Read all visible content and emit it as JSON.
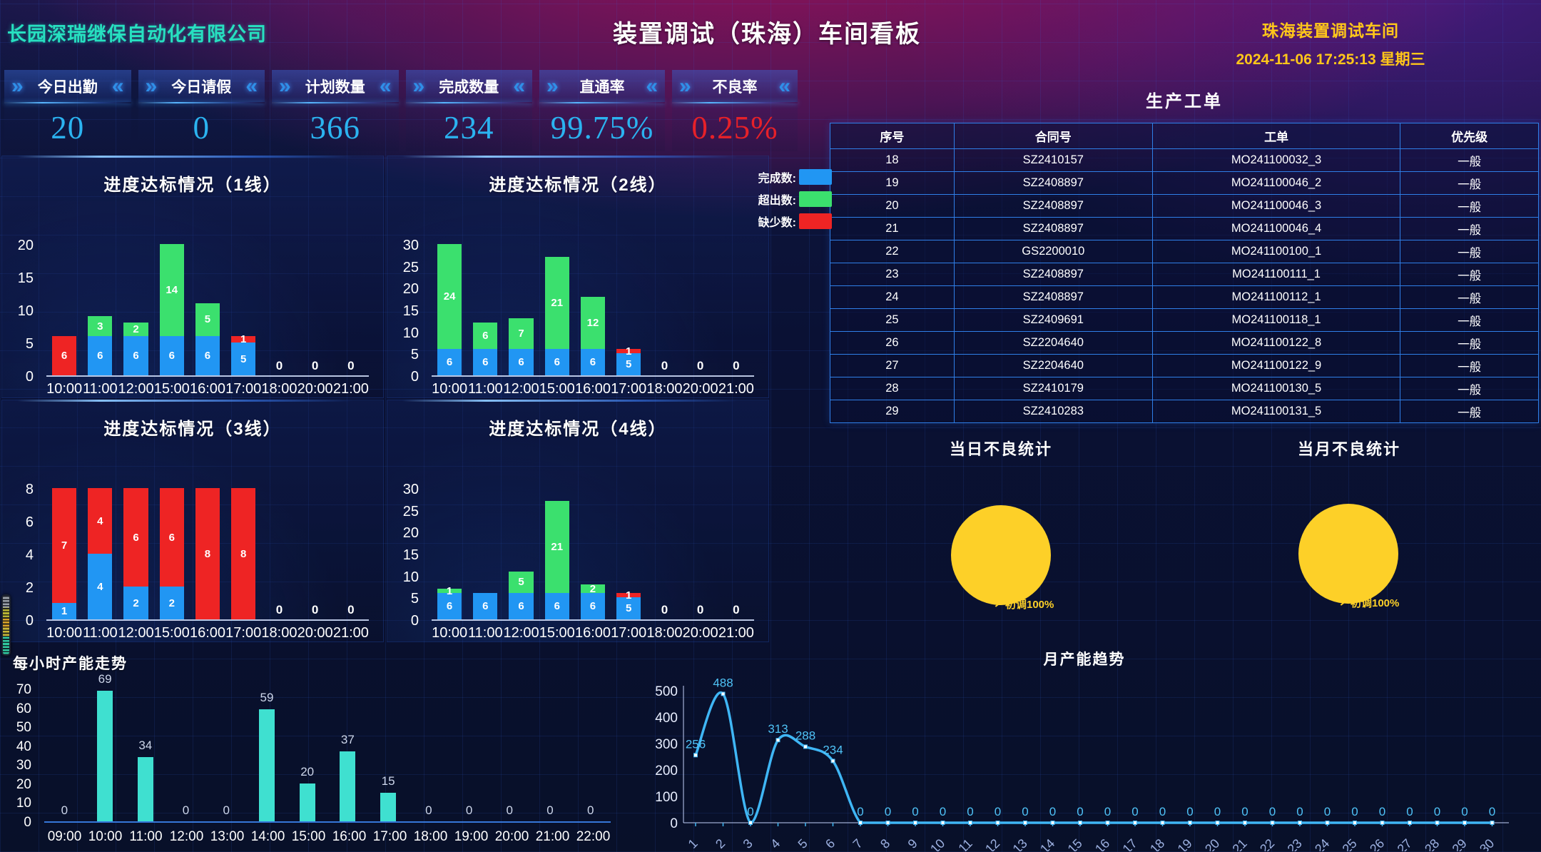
{
  "header": {
    "company": "长园深瑞继保自动化有限公司",
    "title": "装置调试（珠海）车间看板",
    "workshop": "珠海装置调试车间",
    "datetime": "2024-11-06 17:25:13 星期三"
  },
  "kpis": [
    {
      "label": "今日出勤",
      "value": "20",
      "color": "#2bb3f0"
    },
    {
      "label": "今日请假",
      "value": "0",
      "color": "#2bb3f0"
    },
    {
      "label": "计划数量",
      "value": "366",
      "color": "#2bb3f0"
    },
    {
      "label": "完成数量",
      "value": "234",
      "color": "#2bb3f0"
    },
    {
      "label": "直通率",
      "value": "99.75%",
      "color": "#2bb3f0"
    },
    {
      "label": "不良率",
      "value": "0.25%",
      "color": "#e62129"
    }
  ],
  "legend": {
    "items": [
      {
        "label": "完成数:",
        "color": "#2196f3"
      },
      {
        "label": "超出数:",
        "color": "#3be06e"
      },
      {
        "label": "缺少数:",
        "color": "#ee2424"
      }
    ]
  },
  "production_table": {
    "title": "生产工单",
    "columns": [
      "序号",
      "合同号",
      "工单",
      "优先级"
    ],
    "col_widths": [
      "17.5%",
      "28%",
      "35%",
      "19.5%"
    ],
    "rows": [
      [
        "18",
        "SZ2410157",
        "MO241100032_3",
        "一般"
      ],
      [
        "19",
        "SZ2408897",
        "MO241100046_2",
        "一般"
      ],
      [
        "20",
        "SZ2408897",
        "MO241100046_3",
        "一般"
      ],
      [
        "21",
        "SZ2408897",
        "MO241100046_4",
        "一般"
      ],
      [
        "22",
        "GS2200010",
        "MO241100100_1",
        "一般"
      ],
      [
        "23",
        "SZ2408897",
        "MO241100111_1",
        "一般"
      ],
      [
        "24",
        "SZ2408897",
        "MO241100112_1",
        "一般"
      ],
      [
        "25",
        "SZ2409691",
        "MO241100118_1",
        "一般"
      ],
      [
        "26",
        "SZ2204640",
        "MO241100122_8",
        "一般"
      ],
      [
        "27",
        "SZ2204640",
        "MO241100122_9",
        "一般"
      ],
      [
        "28",
        "SZ2410179",
        "MO241100130_5",
        "一般"
      ],
      [
        "29",
        "SZ2410283",
        "MO241100131_5",
        "一般"
      ]
    ]
  },
  "pies": [
    {
      "title": "当日不良统计",
      "label": "初调100%",
      "slices": [
        {
          "name": "初调",
          "percent": 100,
          "color": "#fdd028"
        }
      ]
    },
    {
      "title": "当月不良统计",
      "label": "初调100%",
      "slices": [
        {
          "name": "初调",
          "percent": 100,
          "color": "#fdd028"
        }
      ]
    }
  ],
  "chart_data": [
    {
      "id": "line1",
      "type": "bar",
      "stacked": true,
      "title": "进度达标情况（1线）",
      "categories": [
        "10:00",
        "11:00",
        "12:00",
        "15:00",
        "16:00",
        "17:00",
        "18:00",
        "20:00",
        "21:00"
      ],
      "series": [
        {
          "name": "完成数",
          "color": "#2196f3",
          "values": [
            0,
            6,
            6,
            6,
            6,
            5,
            0,
            0,
            0
          ]
        },
        {
          "name": "超出数",
          "color": "#3be06e",
          "values": [
            0,
            3,
            2,
            14,
            5,
            0,
            0,
            0,
            0
          ]
        },
        {
          "name": "缺少数",
          "color": "#ee2424",
          "values": [
            6,
            0,
            0,
            0,
            0,
            1,
            0,
            0,
            0
          ]
        }
      ],
      "ylim": [
        0,
        20
      ],
      "yticks": [
        0,
        5,
        10,
        15,
        20
      ]
    },
    {
      "id": "line2",
      "type": "bar",
      "stacked": true,
      "title": "进度达标情况（2线）",
      "categories": [
        "10:00",
        "11:00",
        "12:00",
        "15:00",
        "16:00",
        "17:00",
        "18:00",
        "20:00",
        "21:00"
      ],
      "series": [
        {
          "name": "完成数",
          "color": "#2196f3",
          "values": [
            6,
            6,
            6,
            6,
            6,
            5,
            0,
            0,
            0
          ]
        },
        {
          "name": "超出数",
          "color": "#3be06e",
          "values": [
            24,
            6,
            7,
            21,
            12,
            0,
            0,
            0,
            0
          ]
        },
        {
          "name": "缺少数",
          "color": "#ee2424",
          "values": [
            0,
            0,
            0,
            0,
            0,
            1,
            0,
            0,
            0
          ]
        }
      ],
      "ylim": [
        0,
        30
      ],
      "yticks": [
        0,
        5,
        10,
        15,
        20,
        25,
        30
      ]
    },
    {
      "id": "line3",
      "type": "bar",
      "stacked": true,
      "title": "进度达标情况（3线）",
      "categories": [
        "10:00",
        "11:00",
        "12:00",
        "15:00",
        "16:00",
        "17:00",
        "18:00",
        "20:00",
        "21:00"
      ],
      "series": [
        {
          "name": "完成数",
          "color": "#2196f3",
          "values": [
            1,
            4,
            2,
            2,
            0,
            0,
            0,
            0,
            0
          ]
        },
        {
          "name": "超出数",
          "color": "#3be06e",
          "values": [
            0,
            0,
            0,
            0,
            0,
            0,
            0,
            0,
            0
          ]
        },
        {
          "name": "缺少数",
          "color": "#ee2424",
          "values": [
            7,
            4,
            6,
            6,
            8,
            8,
            0,
            0,
            0
          ]
        }
      ],
      "ylim": [
        0,
        8
      ],
      "yticks": [
        0,
        2,
        4,
        6,
        8
      ]
    },
    {
      "id": "line4",
      "type": "bar",
      "stacked": true,
      "title": "进度达标情况（4线）",
      "categories": [
        "10:00",
        "11:00",
        "12:00",
        "15:00",
        "16:00",
        "17:00",
        "18:00",
        "20:00",
        "21:00"
      ],
      "series": [
        {
          "name": "完成数",
          "color": "#2196f3",
          "values": [
            6,
            6,
            6,
            6,
            6,
            5,
            0,
            0,
            0
          ]
        },
        {
          "name": "超出数",
          "color": "#3be06e",
          "values": [
            1,
            0,
            5,
            21,
            2,
            0,
            0,
            0,
            0
          ]
        },
        {
          "name": "缺少数",
          "color": "#ee2424",
          "values": [
            0,
            0,
            0,
            0,
            0,
            1,
            0,
            0,
            0
          ]
        }
      ],
      "ylim": [
        0,
        30
      ],
      "yticks": [
        0,
        5,
        10,
        15,
        20,
        25,
        30
      ]
    },
    {
      "id": "hourly",
      "type": "bar",
      "title": "每小时产能走势",
      "categories": [
        "09:00",
        "10:00",
        "11:00",
        "12:00",
        "13:00",
        "14:00",
        "15:00",
        "16:00",
        "17:00",
        "18:00",
        "19:00",
        "20:00",
        "21:00",
        "22:00"
      ],
      "values": [
        0,
        69,
        34,
        0,
        0,
        59,
        20,
        37,
        15,
        0,
        0,
        0,
        0,
        0
      ],
      "color": "#3fe0d0",
      "ylim": [
        0,
        70
      ],
      "yticks": [
        0,
        10,
        20,
        30,
        40,
        50,
        60,
        70
      ]
    },
    {
      "id": "monthly",
      "type": "line",
      "title": "月产能趋势",
      "categories": [
        "1",
        "2",
        "3",
        "4",
        "5",
        "6",
        "7",
        "8",
        "9",
        "10",
        "11",
        "12",
        "13",
        "14",
        "15",
        "16",
        "17",
        "18",
        "19",
        "20",
        "21",
        "22",
        "23",
        "24",
        "25",
        "26",
        "27",
        "28",
        "29",
        "30"
      ],
      "values": [
        256,
        488,
        0,
        313,
        288,
        234,
        0,
        0,
        0,
        0,
        0,
        0,
        0,
        0,
        0,
        0,
        0,
        0,
        0,
        0,
        0,
        0,
        0,
        0,
        0,
        0,
        0,
        0,
        0,
        0
      ],
      "color": "#3fb6f5",
      "ylim": [
        0,
        500
      ],
      "yticks": [
        0,
        100,
        200,
        300,
        400,
        500
      ]
    }
  ]
}
